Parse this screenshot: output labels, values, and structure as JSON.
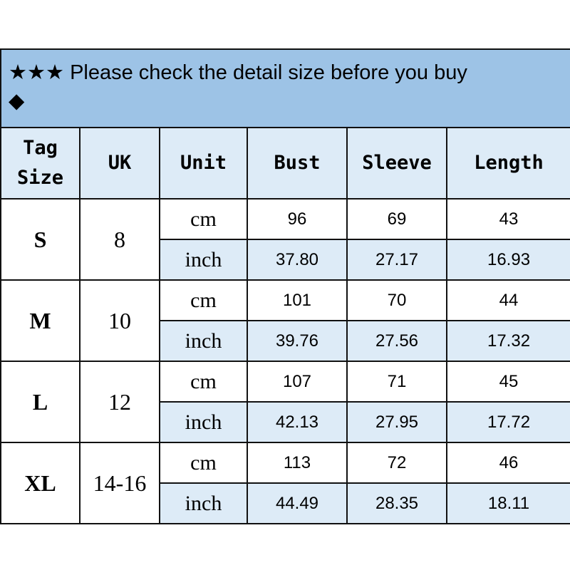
{
  "banner": {
    "stars": "★★★",
    "text": "Please check the detail size before you buy",
    "diamond": "◆"
  },
  "headers": {
    "tag_size_1": "Tag",
    "tag_size_2": "Size",
    "uk": "UK",
    "unit": "Unit",
    "bust": "Bust",
    "sleeve": "Sleeve",
    "length": "Length"
  },
  "rows": [
    {
      "size": "S",
      "uk": "8",
      "cm": {
        "unit": "cm",
        "bust": "96",
        "sleeve": "69",
        "length": "43"
      },
      "inch": {
        "unit": "inch",
        "bust": "37.80",
        "sleeve": "27.17",
        "length": "16.93"
      }
    },
    {
      "size": "M",
      "uk": "10",
      "cm": {
        "unit": "cm",
        "bust": "101",
        "sleeve": "70",
        "length": "44"
      },
      "inch": {
        "unit": "inch",
        "bust": "39.76",
        "sleeve": "27.56",
        "length": "17.32"
      }
    },
    {
      "size": "L",
      "uk": "12",
      "cm": {
        "unit": "cm",
        "bust": "107",
        "sleeve": "71",
        "length": "45"
      },
      "inch": {
        "unit": "inch",
        "bust": "42.13",
        "sleeve": "27.95",
        "length": "17.72"
      }
    },
    {
      "size": "XL",
      "uk": "14-16",
      "cm": {
        "unit": "cm",
        "bust": "113",
        "sleeve": "72",
        "length": "46"
      },
      "inch": {
        "unit": "inch",
        "bust": "44.49",
        "sleeve": "28.35",
        "length": "18.11"
      }
    }
  ],
  "colors": {
    "banner": "#9dc3e6",
    "light": "#ddebf7"
  }
}
